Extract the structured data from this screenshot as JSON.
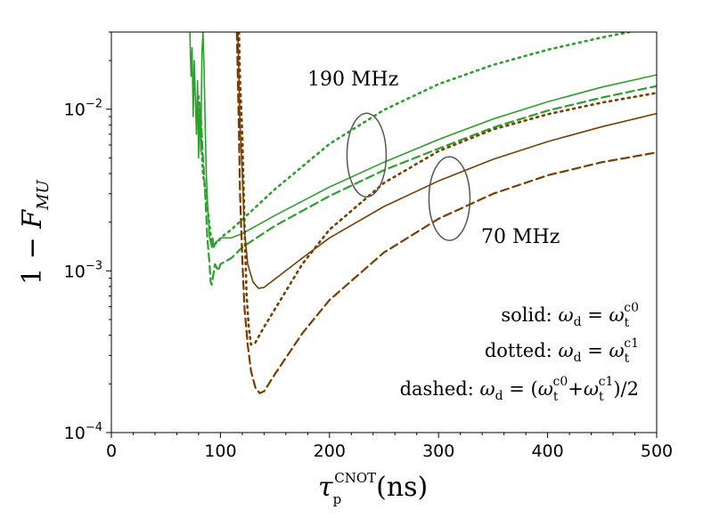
{
  "chart_data": {
    "type": "line",
    "scale": {
      "y": "log"
    },
    "xlim": [
      0,
      500
    ],
    "ylim": [
      0.0001,
      0.03
    ],
    "grid": false,
    "x_ticks": [
      0,
      100,
      200,
      300,
      400,
      500
    ],
    "x_tick_labels": [
      "0",
      "100",
      "200",
      "300",
      "400",
      "500"
    ],
    "y_ticks": [
      0.0001,
      0.001,
      0.01
    ],
    "y_tick_labels": [
      {
        "base": "10",
        "exp": "−4"
      },
      {
        "base": "10",
        "exp": "−3"
      },
      {
        "base": "10",
        "exp": "−2"
      }
    ],
    "xlabel": {
      "main": "τ",
      "sub": "p",
      "sup": "CNOT",
      "unit": "(ns)"
    },
    "ylabel": {
      "prefix": "1 − ",
      "main": "F",
      "sub": "MU"
    },
    "colors": {
      "green": "#2ca02c",
      "brown": "#7a3d00",
      "ellipse": "#555555"
    },
    "annotations": [
      {
        "id": "label-190",
        "text": "190 MHz"
      },
      {
        "id": "label-70",
        "text": "70 MHz"
      }
    ],
    "legend_text": [
      {
        "id": "solid",
        "lhs": "solid: ",
        "w": "ω",
        "d": "d",
        "eq": " = ",
        "rhs": "ω",
        "rsub": "t",
        "rsup": "c0"
      },
      {
        "id": "dotted",
        "lhs": "dotted: ",
        "w": "ω",
        "d": "d",
        "eq": " = ",
        "rhs": "ω",
        "rsub": "t",
        "rsup": "c1"
      },
      {
        "id": "dashed",
        "lhs": "dashed: ",
        "w": "ω",
        "d": "d",
        "eq": " = ",
        "open": "(",
        "a": "ω",
        "asub": "t",
        "asup": "c0",
        "plus": "+",
        "b": "ω",
        "bsub": "t",
        "bsup": "c1",
        "close": ")/2"
      }
    ],
    "series": [
      {
        "id": "green-solid",
        "group": "190 MHz",
        "style": "solid",
        "color": "green",
        "points": [
          [
            72,
            0.03
          ],
          [
            73,
            0.016
          ],
          [
            74,
            0.024
          ],
          [
            75,
            0.009
          ],
          [
            76,
            0.02
          ],
          [
            77,
            0.012
          ],
          [
            78,
            0.007
          ],
          [
            79,
            0.015
          ],
          [
            80,
            0.005
          ],
          [
            81,
            0.011
          ],
          [
            82,
            0.0055
          ],
          [
            83,
            0.022
          ],
          [
            84,
            0.03
          ],
          [
            85,
            0.018
          ],
          [
            86,
            0.008
          ],
          [
            87,
            0.004
          ],
          [
            88,
            0.0028
          ],
          [
            89,
            0.0021
          ],
          [
            90,
            0.0016
          ],
          [
            91,
            0.0015
          ],
          [
            92,
            0.0014
          ],
          [
            93,
            0.0016
          ],
          [
            94,
            0.0014
          ],
          [
            96,
            0.0015
          ],
          [
            100,
            0.0016
          ],
          [
            110,
            0.0016
          ],
          [
            120,
            0.0017
          ],
          [
            150,
            0.0022
          ],
          [
            200,
            0.0033
          ],
          [
            250,
            0.0047
          ],
          [
            300,
            0.0065
          ],
          [
            350,
            0.0087
          ],
          [
            400,
            0.0111
          ],
          [
            450,
            0.0137
          ],
          [
            500,
            0.0163
          ]
        ]
      },
      {
        "id": "green-dotted",
        "group": "190 MHz",
        "style": "dotted",
        "color": "green",
        "points": [
          [
            80,
            0.012
          ],
          [
            82,
            0.007
          ],
          [
            84,
            0.004
          ],
          [
            86,
            0.0032
          ],
          [
            88,
            0.0025
          ],
          [
            90,
            0.0019
          ],
          [
            92,
            0.0015
          ],
          [
            94,
            0.0014
          ],
          [
            96,
            0.0015
          ],
          [
            98,
            0.0015
          ],
          [
            100,
            0.0016
          ],
          [
            110,
            0.0018
          ],
          [
            150,
            0.0032
          ],
          [
            200,
            0.0061
          ],
          [
            250,
            0.0099
          ],
          [
            300,
            0.0143
          ],
          [
            350,
            0.0188
          ],
          [
            400,
            0.0233
          ],
          [
            450,
            0.0278
          ],
          [
            475,
            0.03
          ]
        ]
      },
      {
        "id": "green-dashed",
        "group": "190 MHz",
        "style": "dashed",
        "color": "green",
        "points": [
          [
            82,
            0.009
          ],
          [
            84,
            0.005
          ],
          [
            86,
            0.003
          ],
          [
            88,
            0.0016
          ],
          [
            90,
            0.0011
          ],
          [
            91,
            0.00085
          ],
          [
            92,
            0.00082
          ],
          [
            93,
            0.0009
          ],
          [
            95,
            0.0011
          ],
          [
            98,
            0.001
          ],
          [
            100,
            0.0011
          ],
          [
            110,
            0.0012
          ],
          [
            120,
            0.0014
          ],
          [
            150,
            0.0019
          ],
          [
            200,
            0.0029
          ],
          [
            250,
            0.0042
          ],
          [
            300,
            0.0057
          ],
          [
            350,
            0.0077
          ],
          [
            400,
            0.0098
          ],
          [
            450,
            0.0118
          ],
          [
            500,
            0.0139
          ]
        ]
      },
      {
        "id": "brown-solid",
        "group": "70 MHz",
        "style": "solid",
        "color": "brown",
        "points": [
          [
            116,
            0.03
          ],
          [
            117,
            0.015
          ],
          [
            118,
            0.008
          ],
          [
            120,
            0.004
          ],
          [
            122,
            0.0018
          ],
          [
            125,
            0.0011
          ],
          [
            130,
            0.00085
          ],
          [
            135,
            0.00078
          ],
          [
            140,
            0.00079
          ],
          [
            150,
            0.00089
          ],
          [
            175,
            0.0012
          ],
          [
            200,
            0.0016
          ],
          [
            250,
            0.0025
          ],
          [
            300,
            0.0036
          ],
          [
            350,
            0.0049
          ],
          [
            400,
            0.0063
          ],
          [
            450,
            0.0078
          ],
          [
            500,
            0.0094
          ]
        ]
      },
      {
        "id": "brown-dotted",
        "group": "70 MHz",
        "style": "dotted",
        "color": "brown",
        "points": [
          [
            117,
            0.03
          ],
          [
            118,
            0.015
          ],
          [
            120,
            0.007
          ],
          [
            122,
            0.002
          ],
          [
            124,
            0.0007
          ],
          [
            126,
            0.00045
          ],
          [
            128,
            0.00035
          ],
          [
            132,
            0.00036
          ],
          [
            140,
            0.00045
          ],
          [
            150,
            0.00058
          ],
          [
            175,
            0.0011
          ],
          [
            200,
            0.0018
          ],
          [
            250,
            0.0035
          ],
          [
            300,
            0.0055
          ],
          [
            350,
            0.0075
          ],
          [
            400,
            0.0093
          ],
          [
            450,
            0.011
          ],
          [
            500,
            0.0126
          ]
        ]
      },
      {
        "id": "brown-dashed",
        "group": "70 MHz",
        "style": "dashed",
        "color": "brown",
        "points": [
          [
            115,
            0.03
          ],
          [
            116,
            0.015
          ],
          [
            117,
            0.007
          ],
          [
            118,
            0.003
          ],
          [
            120,
            0.0012
          ],
          [
            122,
            0.0006
          ],
          [
            125,
            0.00035
          ],
          [
            128,
            0.00024
          ],
          [
            132,
            0.00019
          ],
          [
            136,
            0.000175
          ],
          [
            140,
            0.00018
          ],
          [
            150,
            0.00023
          ],
          [
            175,
            0.00041
          ],
          [
            200,
            0.00066
          ],
          [
            250,
            0.0013
          ],
          [
            300,
            0.0021
          ],
          [
            350,
            0.003
          ],
          [
            400,
            0.0039
          ],
          [
            450,
            0.0047
          ],
          [
            500,
            0.0054
          ]
        ]
      }
    ]
  }
}
